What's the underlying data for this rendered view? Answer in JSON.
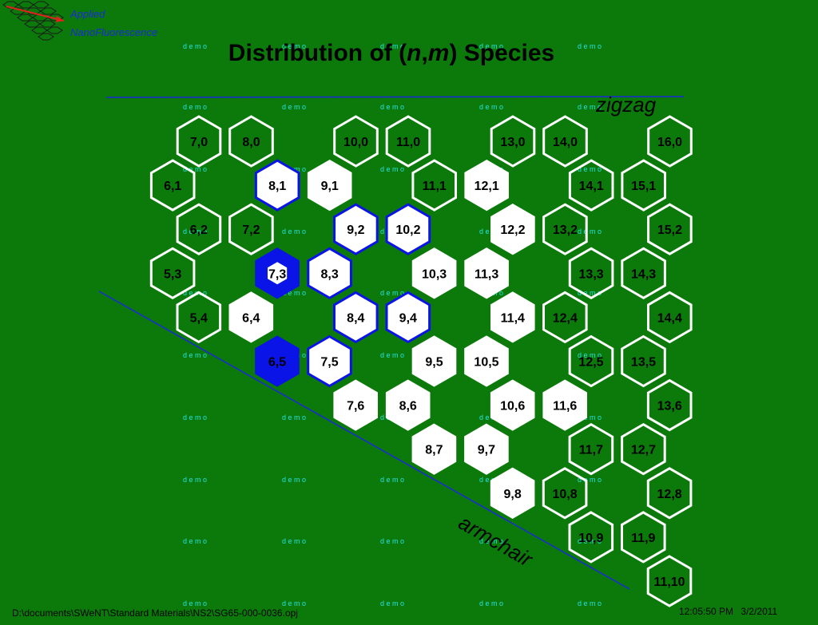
{
  "header": {
    "logo_line1": "Applied",
    "logo_line2": "NanoFluorescence"
  },
  "chart_data": {
    "type": "heatmap",
    "title_prefix": "Distribution of (",
    "title_n": "n",
    "title_comma": ",",
    "title_m": "m",
    "title_suffix": ") Species",
    "zigzag_label": "zigzag",
    "armchair_label": "armchair",
    "watermark_text": "d e m o",
    "colors": {
      "background": "#0b7a0b",
      "empty_outline": "#ffffff",
      "filled_white": "#ffffff",
      "blue": "#0a14e6",
      "line": "#1a2ad8"
    },
    "cells": [
      {
        "n": 7,
        "m": 0,
        "state": "empty",
        "label": "7,0"
      },
      {
        "n": 8,
        "m": 0,
        "state": "empty",
        "label": "8,0"
      },
      {
        "n": 10,
        "m": 0,
        "state": "empty",
        "label": "10,0"
      },
      {
        "n": 11,
        "m": 0,
        "state": "empty",
        "label": "11,0"
      },
      {
        "n": 13,
        "m": 0,
        "state": "empty",
        "label": "13,0"
      },
      {
        "n": 14,
        "m": 0,
        "state": "empty",
        "label": "14,0"
      },
      {
        "n": 16,
        "m": 0,
        "state": "empty",
        "label": "16,0"
      },
      {
        "n": 6,
        "m": 1,
        "state": "empty",
        "label": "6,1"
      },
      {
        "n": 8,
        "m": 1,
        "state": "white-blue",
        "label": "8,1"
      },
      {
        "n": 9,
        "m": 1,
        "state": "white",
        "label": "9,1"
      },
      {
        "n": 11,
        "m": 1,
        "state": "empty",
        "label": "11,1"
      },
      {
        "n": 12,
        "m": 1,
        "state": "white",
        "label": "12,1"
      },
      {
        "n": 14,
        "m": 1,
        "state": "empty",
        "label": "14,1"
      },
      {
        "n": 15,
        "m": 1,
        "state": "empty",
        "label": "15,1"
      },
      {
        "n": 6,
        "m": 2,
        "state": "empty",
        "label": "6,2"
      },
      {
        "n": 7,
        "m": 2,
        "state": "empty",
        "label": "7,2"
      },
      {
        "n": 9,
        "m": 2,
        "state": "white-blue",
        "label": "9,2"
      },
      {
        "n": 10,
        "m": 2,
        "state": "white-blue",
        "label": "10,2"
      },
      {
        "n": 12,
        "m": 2,
        "state": "white",
        "label": "12,2"
      },
      {
        "n": 13,
        "m": 2,
        "state": "empty",
        "label": "13,2"
      },
      {
        "n": 15,
        "m": 2,
        "state": "empty",
        "label": "15,2"
      },
      {
        "n": 5,
        "m": 3,
        "state": "empty",
        "label": "5,3"
      },
      {
        "n": 7,
        "m": 3,
        "state": "blue",
        "label": "7,3"
      },
      {
        "n": 8,
        "m": 3,
        "state": "white-blue",
        "label": "8,3"
      },
      {
        "n": 10,
        "m": 3,
        "state": "white",
        "label": "10,3"
      },
      {
        "n": 11,
        "m": 3,
        "state": "white",
        "label": "11,3"
      },
      {
        "n": 13,
        "m": 3,
        "state": "empty",
        "label": "13,3"
      },
      {
        "n": 14,
        "m": 3,
        "state": "empty",
        "label": "14,3"
      },
      {
        "n": 5,
        "m": 4,
        "state": "empty",
        "label": "5,4"
      },
      {
        "n": 6,
        "m": 4,
        "state": "white",
        "label": "6,4"
      },
      {
        "n": 8,
        "m": 4,
        "state": "white-blue",
        "label": "8,4"
      },
      {
        "n": 9,
        "m": 4,
        "state": "white-blue",
        "label": "9,4"
      },
      {
        "n": 11,
        "m": 4,
        "state": "white",
        "label": "11,4"
      },
      {
        "n": 12,
        "m": 4,
        "state": "empty",
        "label": "12,4"
      },
      {
        "n": 14,
        "m": 4,
        "state": "empty",
        "label": "14,4"
      },
      {
        "n": 6,
        "m": 5,
        "state": "blue-solid",
        "label": "6,5"
      },
      {
        "n": 7,
        "m": 5,
        "state": "white-blue",
        "label": "7,5"
      },
      {
        "n": 9,
        "m": 5,
        "state": "white",
        "label": "9,5"
      },
      {
        "n": 10,
        "m": 5,
        "state": "white",
        "label": "10,5"
      },
      {
        "n": 12,
        "m": 5,
        "state": "empty",
        "label": "12,5"
      },
      {
        "n": 13,
        "m": 5,
        "state": "empty",
        "label": "13,5"
      },
      {
        "n": 7,
        "m": 6,
        "state": "white",
        "label": "7,6"
      },
      {
        "n": 8,
        "m": 6,
        "state": "white",
        "label": "8,6"
      },
      {
        "n": 10,
        "m": 6,
        "state": "white",
        "label": "10,6"
      },
      {
        "n": 11,
        "m": 6,
        "state": "white",
        "label": "11,6"
      },
      {
        "n": 13,
        "m": 6,
        "state": "empty",
        "label": "13,6"
      },
      {
        "n": 8,
        "m": 7,
        "state": "white",
        "label": "8,7"
      },
      {
        "n": 9,
        "m": 7,
        "state": "white",
        "label": "9,7"
      },
      {
        "n": 11,
        "m": 7,
        "state": "empty",
        "label": "11,7"
      },
      {
        "n": 12,
        "m": 7,
        "state": "empty",
        "label": "12,7"
      },
      {
        "n": 9,
        "m": 8,
        "state": "white",
        "label": "9,8"
      },
      {
        "n": 10,
        "m": 8,
        "state": "empty",
        "label": "10,8"
      },
      {
        "n": 12,
        "m": 8,
        "state": "empty",
        "label": "12,8"
      },
      {
        "n": 10,
        "m": 9,
        "state": "empty",
        "label": "10,9"
      },
      {
        "n": 11,
        "m": 9,
        "state": "empty",
        "label": "11,9"
      },
      {
        "n": 11,
        "m": 10,
        "state": "empty",
        "label": "11,10"
      }
    ]
  },
  "footer": {
    "path": "D:\\documents\\SWeNT\\Standard Materials\\NS2\\SG65-000-0036.opj",
    "time": "12:05:50 PM",
    "date": "3/2/2011"
  }
}
